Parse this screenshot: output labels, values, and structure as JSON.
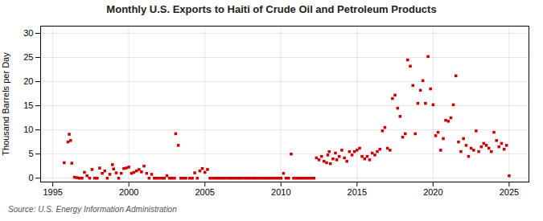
{
  "chart_data": {
    "type": "scatter",
    "title": "Monthly U.S. Exports to Haiti of Crude Oil and Petroleum Products",
    "ylabel": "Thousand Barrels per Day",
    "source": "Source: U.S. Energy Information Administration",
    "color": "#cc0000",
    "marker": "square",
    "grid": true,
    "xlim": [
      1994.2,
      2026.3
    ],
    "ylim": [
      -0.8,
      31.5
    ],
    "xticks": [
      1995,
      2000,
      2005,
      2010,
      2015,
      2020,
      2025
    ],
    "yticks": [
      0,
      5,
      10,
      15,
      20,
      25,
      30
    ],
    "x": [
      1995.75,
      1996.0,
      1996.08,
      1996.17,
      1996.25,
      1996.42,
      1996.58,
      1996.75,
      1996.92,
      1997.08,
      1997.25,
      1997.42,
      1997.58,
      1997.75,
      1997.92,
      1998.08,
      1998.25,
      1998.42,
      1998.58,
      1998.75,
      1998.92,
      1999.0,
      1999.17,
      1999.33,
      1999.5,
      1999.67,
      1999.83,
      2000.0,
      2000.17,
      2000.33,
      2000.5,
      2000.67,
      2000.83,
      2001.0,
      2001.17,
      2001.33,
      2001.5,
      2001.67,
      2001.83,
      2002.0,
      2002.17,
      2002.33,
      2002.5,
      2002.67,
      2002.83,
      2003.0,
      2003.08,
      2003.25,
      2003.42,
      2003.58,
      2003.75,
      2004.0,
      2004.17,
      2004.33,
      2004.5,
      2004.67,
      2004.83,
      2005.0,
      2005.17,
      2005.33,
      2005.5,
      2005.67,
      2005.83,
      2006.0,
      2006.17,
      2006.33,
      2006.5,
      2006.67,
      2006.83,
      2007.0,
      2007.17,
      2007.33,
      2007.5,
      2007.67,
      2007.83,
      2008.0,
      2008.17,
      2008.33,
      2008.5,
      2008.67,
      2008.83,
      2009.0,
      2009.17,
      2009.33,
      2009.5,
      2009.67,
      2009.83,
      2010.0,
      2010.17,
      2010.33,
      2010.5,
      2010.67,
      2010.83,
      2011.0,
      2011.17,
      2011.33,
      2011.5,
      2011.67,
      2011.83,
      2012.0,
      2012.17,
      2012.33,
      2012.5,
      2012.67,
      2012.83,
      2013.0,
      2013.08,
      2013.17,
      2013.25,
      2013.42,
      2013.58,
      2013.67,
      2013.83,
      2014.0,
      2014.17,
      2014.33,
      2014.5,
      2014.67,
      2014.83,
      2015.0,
      2015.17,
      2015.33,
      2015.5,
      2015.67,
      2015.83,
      2016.0,
      2016.17,
      2016.33,
      2016.5,
      2016.67,
      2016.83,
      2017.0,
      2017.17,
      2017.33,
      2017.5,
      2017.67,
      2017.83,
      2018.0,
      2018.17,
      2018.33,
      2018.5,
      2018.67,
      2018.83,
      2019.0,
      2019.17,
      2019.33,
      2019.5,
      2019.67,
      2019.83,
      2020.0,
      2020.17,
      2020.33,
      2020.5,
      2020.67,
      2020.83,
      2021.0,
      2021.17,
      2021.33,
      2021.5,
      2021.67,
      2021.83,
      2022.0,
      2022.17,
      2022.33,
      2022.5,
      2022.67,
      2022.83,
      2023.0,
      2023.17,
      2023.33,
      2023.5,
      2023.67,
      2023.83,
      2024.0,
      2024.17,
      2024.33,
      2024.5,
      2024.67,
      2024.83,
      2025.0
    ],
    "values": [
      3.2,
      7.5,
      9.1,
      7.8,
      3.1,
      0.2,
      0.1,
      0.0,
      0.0,
      1.2,
      0.5,
      0.0,
      1.8,
      0.0,
      0.0,
      2.1,
      1.0,
      1.5,
      0.0,
      0.8,
      2.8,
      1.9,
      1.1,
      0.0,
      1.0,
      2.0,
      2.1,
      2.3,
      1.0,
      1.2,
      1.5,
      1.8,
      1.3,
      2.5,
      1.0,
      0.0,
      0.8,
      0.0,
      0.0,
      0.0,
      0.0,
      0.0,
      0.5,
      0.0,
      0.0,
      0.0,
      9.2,
      6.8,
      0.0,
      0.0,
      0.0,
      0.0,
      0.0,
      1.1,
      0.0,
      1.5,
      2.0,
      1.2,
      1.8,
      0.0,
      0.0,
      0.0,
      0.0,
      0.0,
      0.0,
      0.0,
      0.0,
      0.0,
      0.0,
      0.0,
      0.0,
      0.0,
      0.0,
      0.0,
      0.0,
      0.0,
      0.0,
      0.0,
      0.0,
      0.0,
      0.0,
      0.0,
      0.0,
      0.0,
      0.0,
      0.0,
      0.0,
      0.0,
      1.0,
      0.0,
      0.0,
      5.0,
      0.0,
      0.0,
      0.0,
      0.0,
      0.0,
      0.0,
      0.0,
      0.0,
      0.0,
      4.2,
      3.8,
      4.5,
      3.5,
      3.2,
      4.8,
      5.5,
      3.0,
      4.0,
      5.2,
      3.8,
      4.5,
      5.8,
      4.2,
      3.5,
      5.5,
      4.8,
      5.5,
      5.8,
      6.2,
      4.5,
      4.0,
      4.5,
      3.8,
      5.2,
      4.8,
      5.5,
      6.0,
      9.8,
      10.5,
      6.2,
      5.8,
      16.5,
      17.2,
      14.5,
      12.8,
      8.5,
      9.2,
      24.5,
      23.2,
      19.2,
      9.2,
      15.5,
      18.2,
      20.2,
      15.5,
      25.2,
      18.5,
      15.2,
      8.8,
      9.5,
      5.8,
      8.2,
      12.0,
      11.8,
      12.5,
      15.2,
      21.2,
      7.5,
      5.5,
      8.2,
      6.8,
      4.5,
      6.2,
      5.8,
      9.8,
      5.5,
      6.5,
      7.2,
      6.8,
      6.2,
      5.5,
      9.5,
      7.8,
      6.5,
      7.2,
      6.0,
      6.8,
      0.5
    ]
  }
}
